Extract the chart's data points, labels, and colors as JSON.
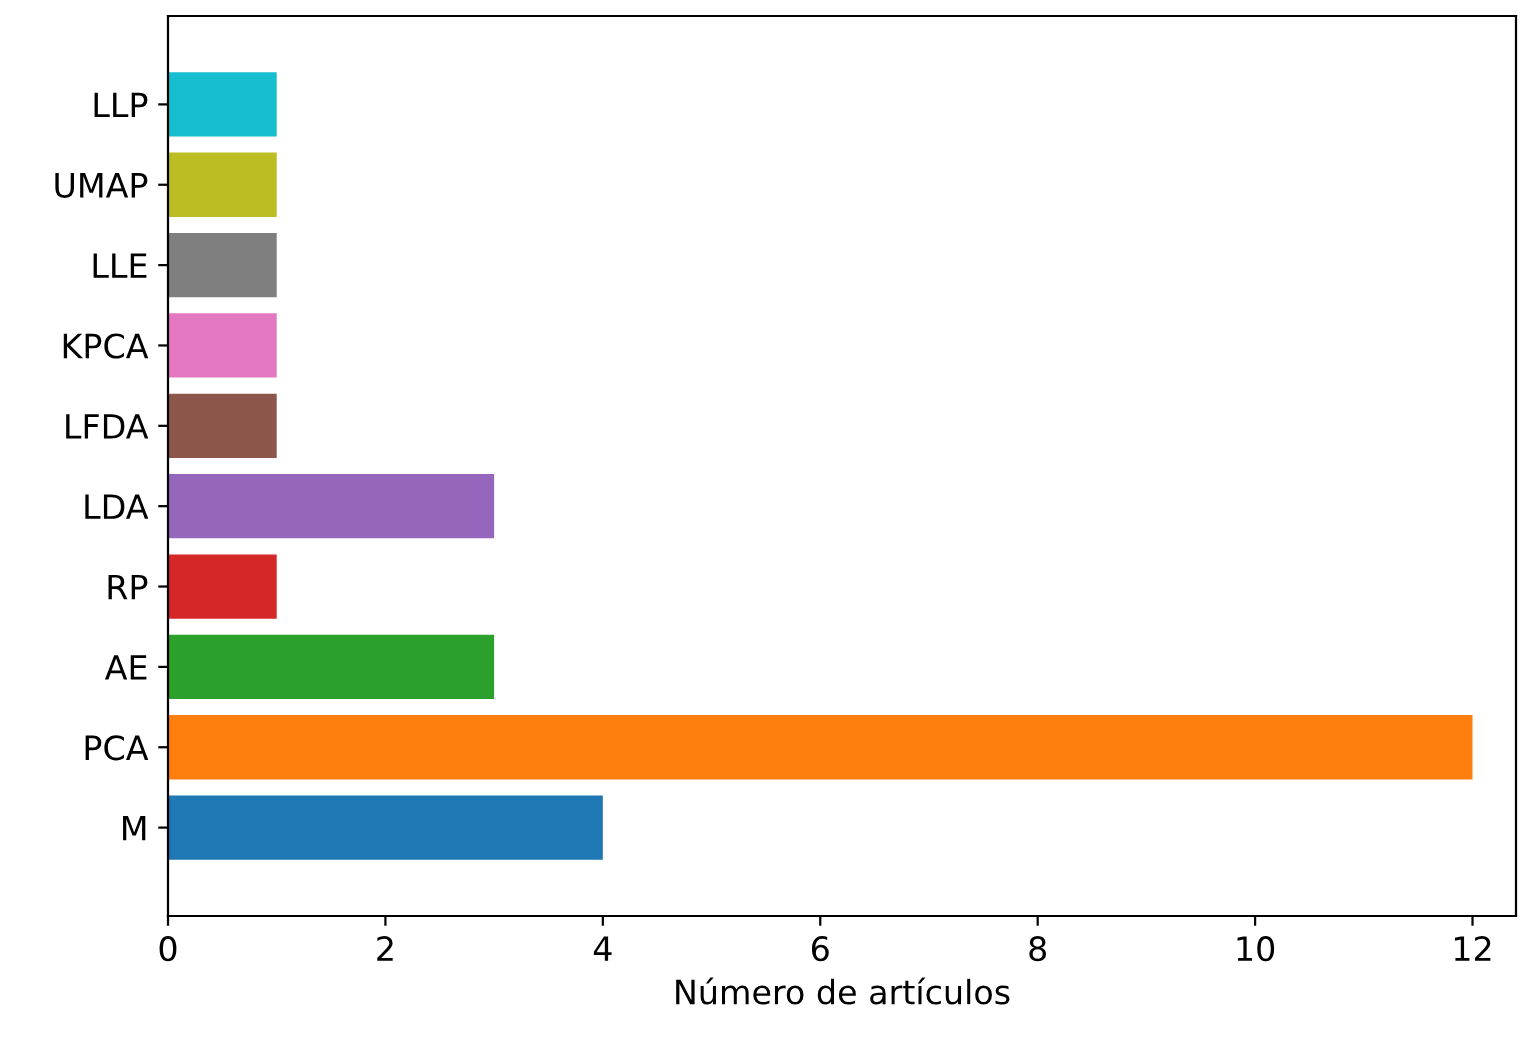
{
  "chart_data": {
    "type": "bar",
    "orientation": "horizontal",
    "xlabel": "Número de artículos",
    "categories": [
      "LLP",
      "UMAP",
      "LLE",
      "KPCA",
      "LFDA",
      "LDA",
      "RP",
      "AE",
      "PCA",
      "M"
    ],
    "values": [
      1,
      1,
      1,
      1,
      1,
      3,
      1,
      3,
      12,
      4
    ],
    "colors": [
      "#17becf",
      "#bcbd22",
      "#7f7f7f",
      "#e377c2",
      "#8c564b",
      "#9467bd",
      "#d62728",
      "#2ca02c",
      "#ff7f0e",
      "#1f77b4"
    ],
    "xlim": [
      0,
      12.4
    ],
    "xticks": [
      0,
      2,
      4,
      6,
      8,
      10,
      12
    ],
    "grid": false,
    "legend": false
  }
}
